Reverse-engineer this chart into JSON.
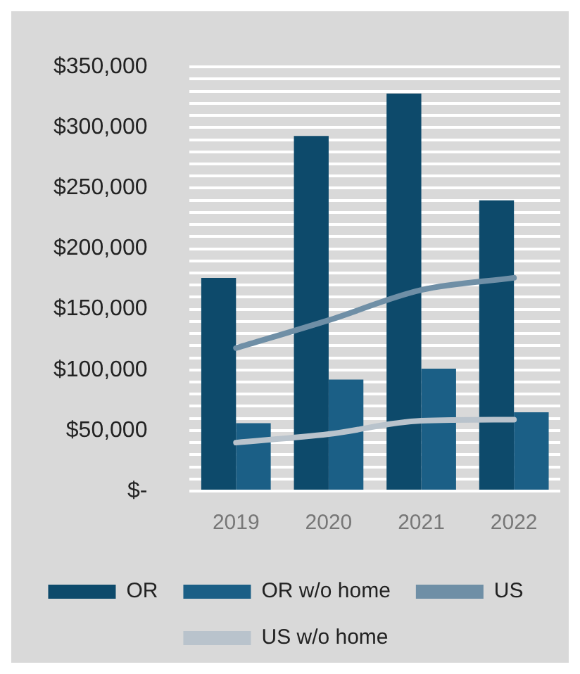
{
  "chart_data": {
    "type": "bar",
    "categories": [
      "2019",
      "2020",
      "2021",
      "2022"
    ],
    "series": [
      {
        "name": "OR",
        "color": "#0d4a6b",
        "values": [
          176000,
          293000,
          328000,
          240000
        ]
      },
      {
        "name": "OR w/o home",
        "color": "#1b5f86",
        "values": [
          56000,
          92000,
          101000,
          65000
        ]
      },
      {
        "name": "US",
        "type": "line",
        "color": "#6f8fa6",
        "values": [
          118000,
          141000,
          166000,
          176000
        ]
      },
      {
        "name": "US w/o home",
        "type": "line",
        "color": "#b9c3cc",
        "values": [
          40000,
          47000,
          58000,
          59000
        ]
      }
    ],
    "ylim": [
      0,
      350000
    ],
    "yticks": [
      {
        "value": 0,
        "label": "$-"
      },
      {
        "value": 10000,
        "label": null
      },
      {
        "value": 20000,
        "label": null
      },
      {
        "value": 30000,
        "label": null
      },
      {
        "value": 40000,
        "label": null
      },
      {
        "value": 50000,
        "label": "$50,000"
      },
      {
        "value": 60000,
        "label": null
      },
      {
        "value": 70000,
        "label": null
      },
      {
        "value": 80000,
        "label": null
      },
      {
        "value": 90000,
        "label": null
      },
      {
        "value": 100000,
        "label": "$100,000"
      },
      {
        "value": 110000,
        "label": null
      },
      {
        "value": 120000,
        "label": null
      },
      {
        "value": 130000,
        "label": null
      },
      {
        "value": 140000,
        "label": null
      },
      {
        "value": 150000,
        "label": "$150,000"
      },
      {
        "value": 160000,
        "label": null
      },
      {
        "value": 170000,
        "label": null
      },
      {
        "value": 180000,
        "label": null
      },
      {
        "value": 190000,
        "label": null
      },
      {
        "value": 200000,
        "label": "$200,000"
      },
      {
        "value": 210000,
        "label": null
      },
      {
        "value": 220000,
        "label": null
      },
      {
        "value": 230000,
        "label": null
      },
      {
        "value": 240000,
        "label": null
      },
      {
        "value": 250000,
        "label": "$250,000"
      },
      {
        "value": 260000,
        "label": null
      },
      {
        "value": 270000,
        "label": null
      },
      {
        "value": 280000,
        "label": null
      },
      {
        "value": 290000,
        "label": null
      },
      {
        "value": 300000,
        "label": "$300,000"
      },
      {
        "value": 310000,
        "label": null
      },
      {
        "value": 320000,
        "label": null
      },
      {
        "value": 330000,
        "label": null
      },
      {
        "value": 340000,
        "label": null
      },
      {
        "value": 350000,
        "label": "$350,000"
      }
    ],
    "grid": "y",
    "legend": "bottom"
  }
}
